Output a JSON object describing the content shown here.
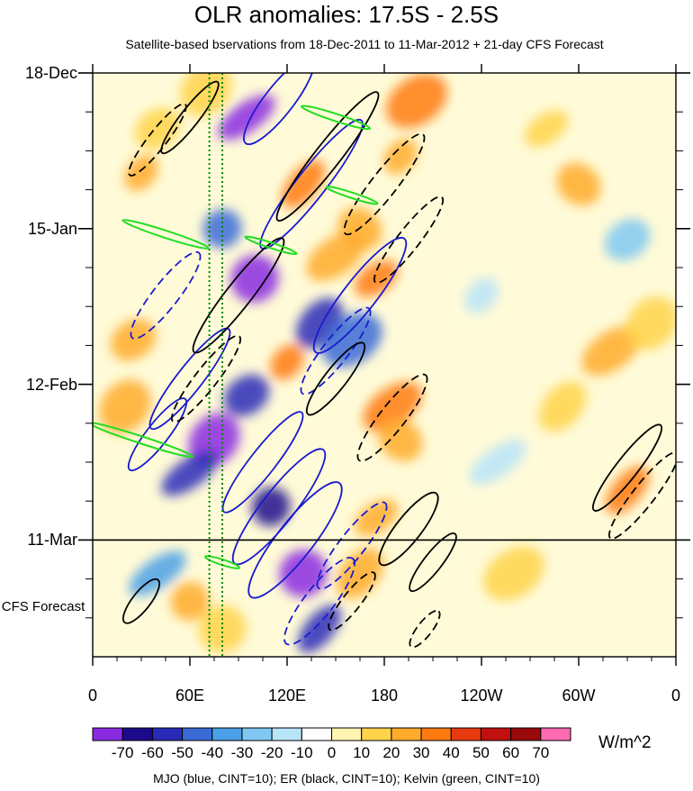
{
  "chart_data": {
    "type": "heatmap",
    "title": "OLR anomalies: 17.5S - 2.5S",
    "subtitle": "Satellite-based bservations from 18-Dec-2011 to 11-Mar-2012 + 21-day CFS Forecast",
    "x_ticks": [
      "0",
      "60E",
      "120E",
      "180",
      "120W",
      "60W",
      "0"
    ],
    "x_range": [
      0,
      360
    ],
    "y_ticks": [
      "18-Dec",
      "15-Jan",
      "12-Feb",
      "11-Mar"
    ],
    "y_range_days": [
      0,
      105
    ],
    "y_tick_days": [
      0,
      28,
      56,
      84
    ],
    "forecast_start_day": 84,
    "forecast_label": "CFS Forecast",
    "colorbar_levels": [
      "-70",
      "-60",
      "-50",
      "-40",
      "-30",
      "-20",
      "-10",
      "0",
      "10",
      "20",
      "30",
      "40",
      "50",
      "60",
      "70"
    ],
    "colorbar_colors": [
      "#8a2be2",
      "#1c0a8c",
      "#2a2ab8",
      "#3a6ad6",
      "#4aa0e6",
      "#7fc8f2",
      "#b8e4f8",
      "#ffffff",
      "#fff5b0",
      "#ffd34a",
      "#ffaa2a",
      "#ff7a10",
      "#e83a10",
      "#c01010",
      "#9a0a0a",
      "#ff6ab0"
    ],
    "units": "W/m^2",
    "contour_note": "MJO (blue, CINT=10); ER (black, CINT=10); Kelvin (green, CINT=10)",
    "contour_colors": {
      "MJO": "#1a1ad0",
      "ER": "#000000",
      "Kelvin": "#22dd22"
    },
    "reference_lines": {
      "color": "#008800",
      "style": "dotted",
      "x_lon": [
        72,
        80
      ]
    },
    "anomaly_regions": [
      {
        "lon": 30,
        "day": 18,
        "value": 30
      },
      {
        "lon": 40,
        "day": 10,
        "value": 20
      },
      {
        "lon": 70,
        "day": 3,
        "value": 20
      },
      {
        "lon": 95,
        "day": 8,
        "value": -70
      },
      {
        "lon": 80,
        "day": 28,
        "value": -40
      },
      {
        "lon": 100,
        "day": 37,
        "value": -70
      },
      {
        "lon": 130,
        "day": 20,
        "value": 40
      },
      {
        "lon": 150,
        "day": 33,
        "value": 30
      },
      {
        "lon": 165,
        "day": 28,
        "value": 30
      },
      {
        "lon": 175,
        "day": 37,
        "value": 40
      },
      {
        "lon": 140,
        "day": 45,
        "value": -50
      },
      {
        "lon": 160,
        "day": 48,
        "value": -40
      },
      {
        "lon": 120,
        "day": 52,
        "value": 40
      },
      {
        "lon": 95,
        "day": 58,
        "value": -50
      },
      {
        "lon": 75,
        "day": 66,
        "value": -70
      },
      {
        "lon": 60,
        "day": 72,
        "value": -50
      },
      {
        "lon": 110,
        "day": 78,
        "value": -60
      },
      {
        "lon": 130,
        "day": 90,
        "value": -70
      },
      {
        "lon": 140,
        "day": 100,
        "value": -50
      },
      {
        "lon": 185,
        "day": 60,
        "value": 40
      },
      {
        "lon": 190,
        "day": 66,
        "value": 30
      },
      {
        "lon": 175,
        "day": 80,
        "value": 30
      },
      {
        "lon": 165,
        "day": 90,
        "value": 30
      },
      {
        "lon": 200,
        "day": 5,
        "value": 40
      },
      {
        "lon": 190,
        "day": 15,
        "value": 30
      },
      {
        "lon": 25,
        "day": 48,
        "value": 30
      },
      {
        "lon": 20,
        "day": 60,
        "value": 30
      },
      {
        "lon": 40,
        "day": 90,
        "value": -30
      },
      {
        "lon": 60,
        "day": 95,
        "value": 30
      },
      {
        "lon": 80,
        "day": 100,
        "value": 20
      },
      {
        "lon": 330,
        "day": 75,
        "value": 40
      },
      {
        "lon": 320,
        "day": 50,
        "value": 30
      },
      {
        "lon": 300,
        "day": 20,
        "value": 30
      },
      {
        "lon": 280,
        "day": 10,
        "value": 20
      },
      {
        "lon": 290,
        "day": 60,
        "value": 20
      },
      {
        "lon": 260,
        "day": 90,
        "value": 20
      },
      {
        "lon": 240,
        "day": 40,
        "value": -10
      },
      {
        "lon": 330,
        "day": 30,
        "value": -20
      },
      {
        "lon": 345,
        "day": 45,
        "value": 20
      },
      {
        "lon": 250,
        "day": 70,
        "value": -10
      }
    ]
  }
}
